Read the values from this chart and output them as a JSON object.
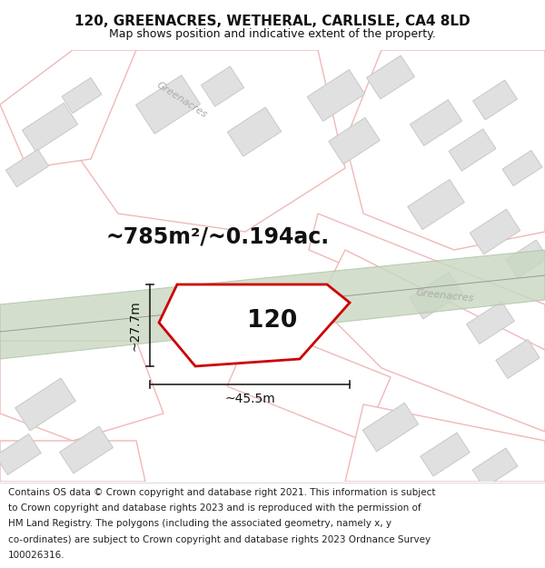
{
  "title": "120, GREENACRES, WETHERAL, CARLISLE, CA4 8LD",
  "subtitle": "Map shows position and indicative extent of the property.",
  "area_text": "~785m²/~0.194ac.",
  "label_120": "120",
  "dim_width": "~45.5m",
  "dim_height": "~27.7m",
  "bg_color": "#ffffff",
  "road_outline_color": "#f0b8b8",
  "road_fill_color": "#ffffff",
  "building_color": "#e0e0e0",
  "building_edge": "#c8c8c8",
  "band_color": "#c8d8c0",
  "band_edge": "#b0c4a8",
  "band_line_color": "#888888",
  "plot_color": "#cc0000",
  "dim_line_color": "#222222",
  "label_color": "#888888",
  "title_fontsize": 11,
  "subtitle_fontsize": 9,
  "area_fontsize": 17,
  "label_fontsize": 19,
  "dim_fontsize": 10,
  "copyright_fontsize": 7.5,
  "copyright_lines": [
    "Contains OS data © Crown copyright and database right 2021. This information is subject",
    "to Crown copyright and database rights 2023 and is reproduced with the permission of",
    "HM Land Registry. The polygons (including the associated geometry, namely x, y",
    "co-ordinates) are subject to Crown copyright and database rights 2023 Ordnance Survey",
    "100026316."
  ]
}
